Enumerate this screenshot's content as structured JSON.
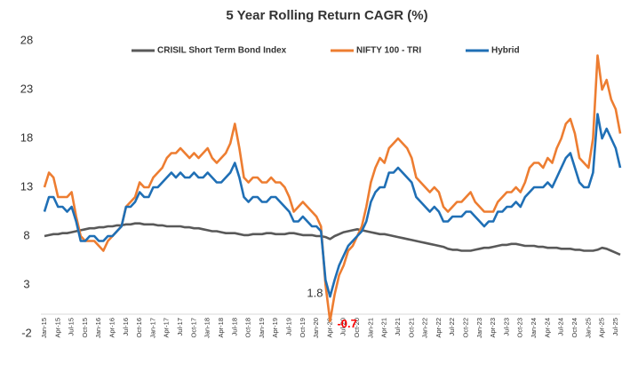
{
  "chart_data": {
    "type": "line",
    "title": "5 Year Rolling Return CAGR (%)",
    "categories": [
      "Jan-15",
      null,
      null,
      "Apr-15",
      null,
      null,
      "Jul-15",
      null,
      null,
      "Oct-15",
      null,
      null,
      "Jan-16",
      null,
      null,
      "Apr-16",
      null,
      null,
      "Jul-16",
      null,
      null,
      "Oct-16",
      null,
      null,
      "Jan-17",
      null,
      null,
      "Apr-17",
      null,
      null,
      "Jul-17",
      null,
      null,
      "Oct-17",
      null,
      null,
      "Jan-18",
      null,
      null,
      "Apr-18",
      null,
      null,
      "Jul-18",
      null,
      null,
      "Oct-18",
      null,
      null,
      "Jan-19",
      null,
      null,
      "Apr-19",
      null,
      null,
      "Jul-19",
      null,
      null,
      "Oct-19",
      null,
      null,
      "Jan-20",
      null,
      null,
      "Apr-20",
      null,
      null,
      "Jul-20",
      null,
      null,
      "Oct-20",
      null,
      null,
      "Jan-21",
      null,
      null,
      "Apr-21",
      null,
      null,
      "Jul-21",
      null,
      null,
      "Oct-21",
      null,
      null,
      "Jan-22",
      null,
      null,
      "Apr-22",
      null,
      null,
      "Jul-22",
      null,
      null,
      "Oct-22",
      null,
      null,
      "Jan-23",
      null,
      null,
      "Apr-23",
      null,
      null,
      "Jul-23",
      null,
      null,
      "Oct-23",
      null,
      null,
      "Jan-24",
      null,
      null,
      "Apr-24",
      null,
      null,
      "Jul-24",
      null,
      null,
      "Oct-24",
      null,
      null,
      "Jan-25",
      null,
      null,
      "Apr-25",
      null,
      null,
      "Jul-25",
      null
    ],
    "series": [
      {
        "name": "CRISIL Short Term Bond Index",
        "color": "#595959",
        "values": [
          8,
          8.1,
          8.2,
          8.2,
          8.3,
          8.3,
          8.4,
          8.5,
          8.6,
          8.7,
          8.8,
          8.8,
          8.9,
          8.9,
          9,
          9,
          9.1,
          9.1,
          9.2,
          9.2,
          9.3,
          9.3,
          9.2,
          9.2,
          9.2,
          9.1,
          9.1,
          9,
          9,
          9,
          9,
          8.9,
          8.9,
          8.8,
          8.8,
          8.7,
          8.6,
          8.5,
          8.5,
          8.4,
          8.3,
          8.3,
          8.3,
          8.2,
          8.1,
          8.1,
          8.2,
          8.2,
          8.2,
          8.3,
          8.3,
          8.2,
          8.2,
          8.2,
          8.3,
          8.3,
          8.2,
          8.1,
          8.1,
          8.1,
          8,
          8,
          7.9,
          7.7,
          8,
          8.2,
          8.4,
          8.5,
          8.6,
          8.7,
          8.6,
          8.5,
          8.4,
          8.3,
          8.2,
          8.2,
          8.1,
          8,
          7.9,
          7.8,
          7.7,
          7.6,
          7.5,
          7.4,
          7.3,
          7.2,
          7.1,
          7,
          6.9,
          6.7,
          6.6,
          6.6,
          6.5,
          6.5,
          6.5,
          6.6,
          6.7,
          6.8,
          6.8,
          6.9,
          7,
          7.1,
          7.1,
          7.2,
          7.2,
          7.1,
          7,
          7,
          7,
          6.9,
          6.9,
          6.8,
          6.8,
          6.8,
          6.7,
          6.7,
          6.7,
          6.6,
          6.6,
          6.5,
          6.5,
          6.5,
          6.6,
          6.8,
          6.7,
          6.5,
          6.3,
          6.1
        ]
      },
      {
        "name": "NIFTY 100 - TRI",
        "color": "#ed7d31",
        "values": [
          13,
          14.5,
          14,
          12,
          12,
          12,
          12.5,
          10,
          8,
          7.5,
          7.5,
          7.5,
          7,
          6.5,
          7.5,
          8,
          8.5,
          9,
          11,
          11.5,
          12,
          13.5,
          13,
          13,
          14,
          14.5,
          15,
          16,
          16.5,
          16.5,
          17,
          16.5,
          16,
          16.5,
          16,
          16.5,
          17,
          16,
          15.5,
          16,
          16.5,
          17.5,
          19.5,
          17,
          14,
          13.5,
          14,
          14,
          13.5,
          13.5,
          14,
          13.5,
          13.5,
          13,
          12,
          10.5,
          11,
          11.5,
          11,
          10.5,
          10,
          9,
          3,
          -0.7,
          2,
          4,
          5,
          6.5,
          7,
          8,
          9,
          11,
          13.5,
          15,
          16,
          15.5,
          17,
          17.5,
          18,
          17.5,
          17,
          16,
          14,
          13.5,
          13,
          12.5,
          13,
          12.5,
          11,
          10.5,
          11,
          11.5,
          11.5,
          12,
          12.5,
          11.5,
          11,
          10.5,
          10.5,
          10.5,
          11.5,
          12,
          12.5,
          12.5,
          13,
          12.5,
          13.5,
          15,
          15.5,
          15.5,
          15,
          16,
          15.5,
          17,
          18,
          19.5,
          20,
          18.5,
          16,
          15.5,
          15,
          18,
          26.5,
          23,
          24,
          22,
          21,
          18.5
        ]
      },
      {
        "name": "Hybrid",
        "color": "#1f6fb5",
        "values": [
          10.5,
          12,
          12,
          11,
          11,
          10.5,
          11,
          9.5,
          7.5,
          7.5,
          8,
          8,
          7.5,
          7.5,
          8,
          8,
          8.5,
          9,
          11,
          11,
          11.5,
          12.5,
          12,
          12,
          13,
          13,
          13.5,
          14,
          14.5,
          14,
          14.5,
          14,
          14,
          14.5,
          14,
          14,
          14.5,
          14,
          13.5,
          13.5,
          14,
          14.5,
          15.5,
          14,
          12,
          11.5,
          12,
          12,
          11.5,
          11.5,
          12,
          12,
          11.5,
          11,
          10.5,
          9.5,
          9.5,
          10,
          9.5,
          9,
          9,
          8.5,
          3.5,
          1.8,
          3.5,
          5,
          6,
          7,
          7.5,
          8,
          8.5,
          9.5,
          11.5,
          12.5,
          13,
          13,
          14.5,
          14.5,
          15,
          14.5,
          14,
          13.5,
          12,
          11.5,
          11,
          10.5,
          11,
          10.5,
          9.5,
          9.5,
          10,
          10,
          10,
          10.5,
          10.5,
          10,
          9.5,
          9,
          9.5,
          9.5,
          10.5,
          10.5,
          11,
          11,
          11.5,
          11,
          12,
          12.5,
          13,
          13,
          13,
          13.5,
          13,
          14,
          15,
          16,
          16.5,
          15,
          13.5,
          13,
          13,
          14.5,
          20.5,
          18,
          19,
          18,
          17,
          15
        ]
      }
    ],
    "annotations": [
      {
        "text": "1.8",
        "series": 2,
        "color": "#333333"
      },
      {
        "text": "-0.7",
        "series": 1,
        "color": "#ff0000"
      }
    ],
    "ylim": [
      -2,
      28
    ],
    "yticks": [
      -2,
      3,
      8,
      13,
      18,
      23,
      28
    ],
    "grid": false
  }
}
